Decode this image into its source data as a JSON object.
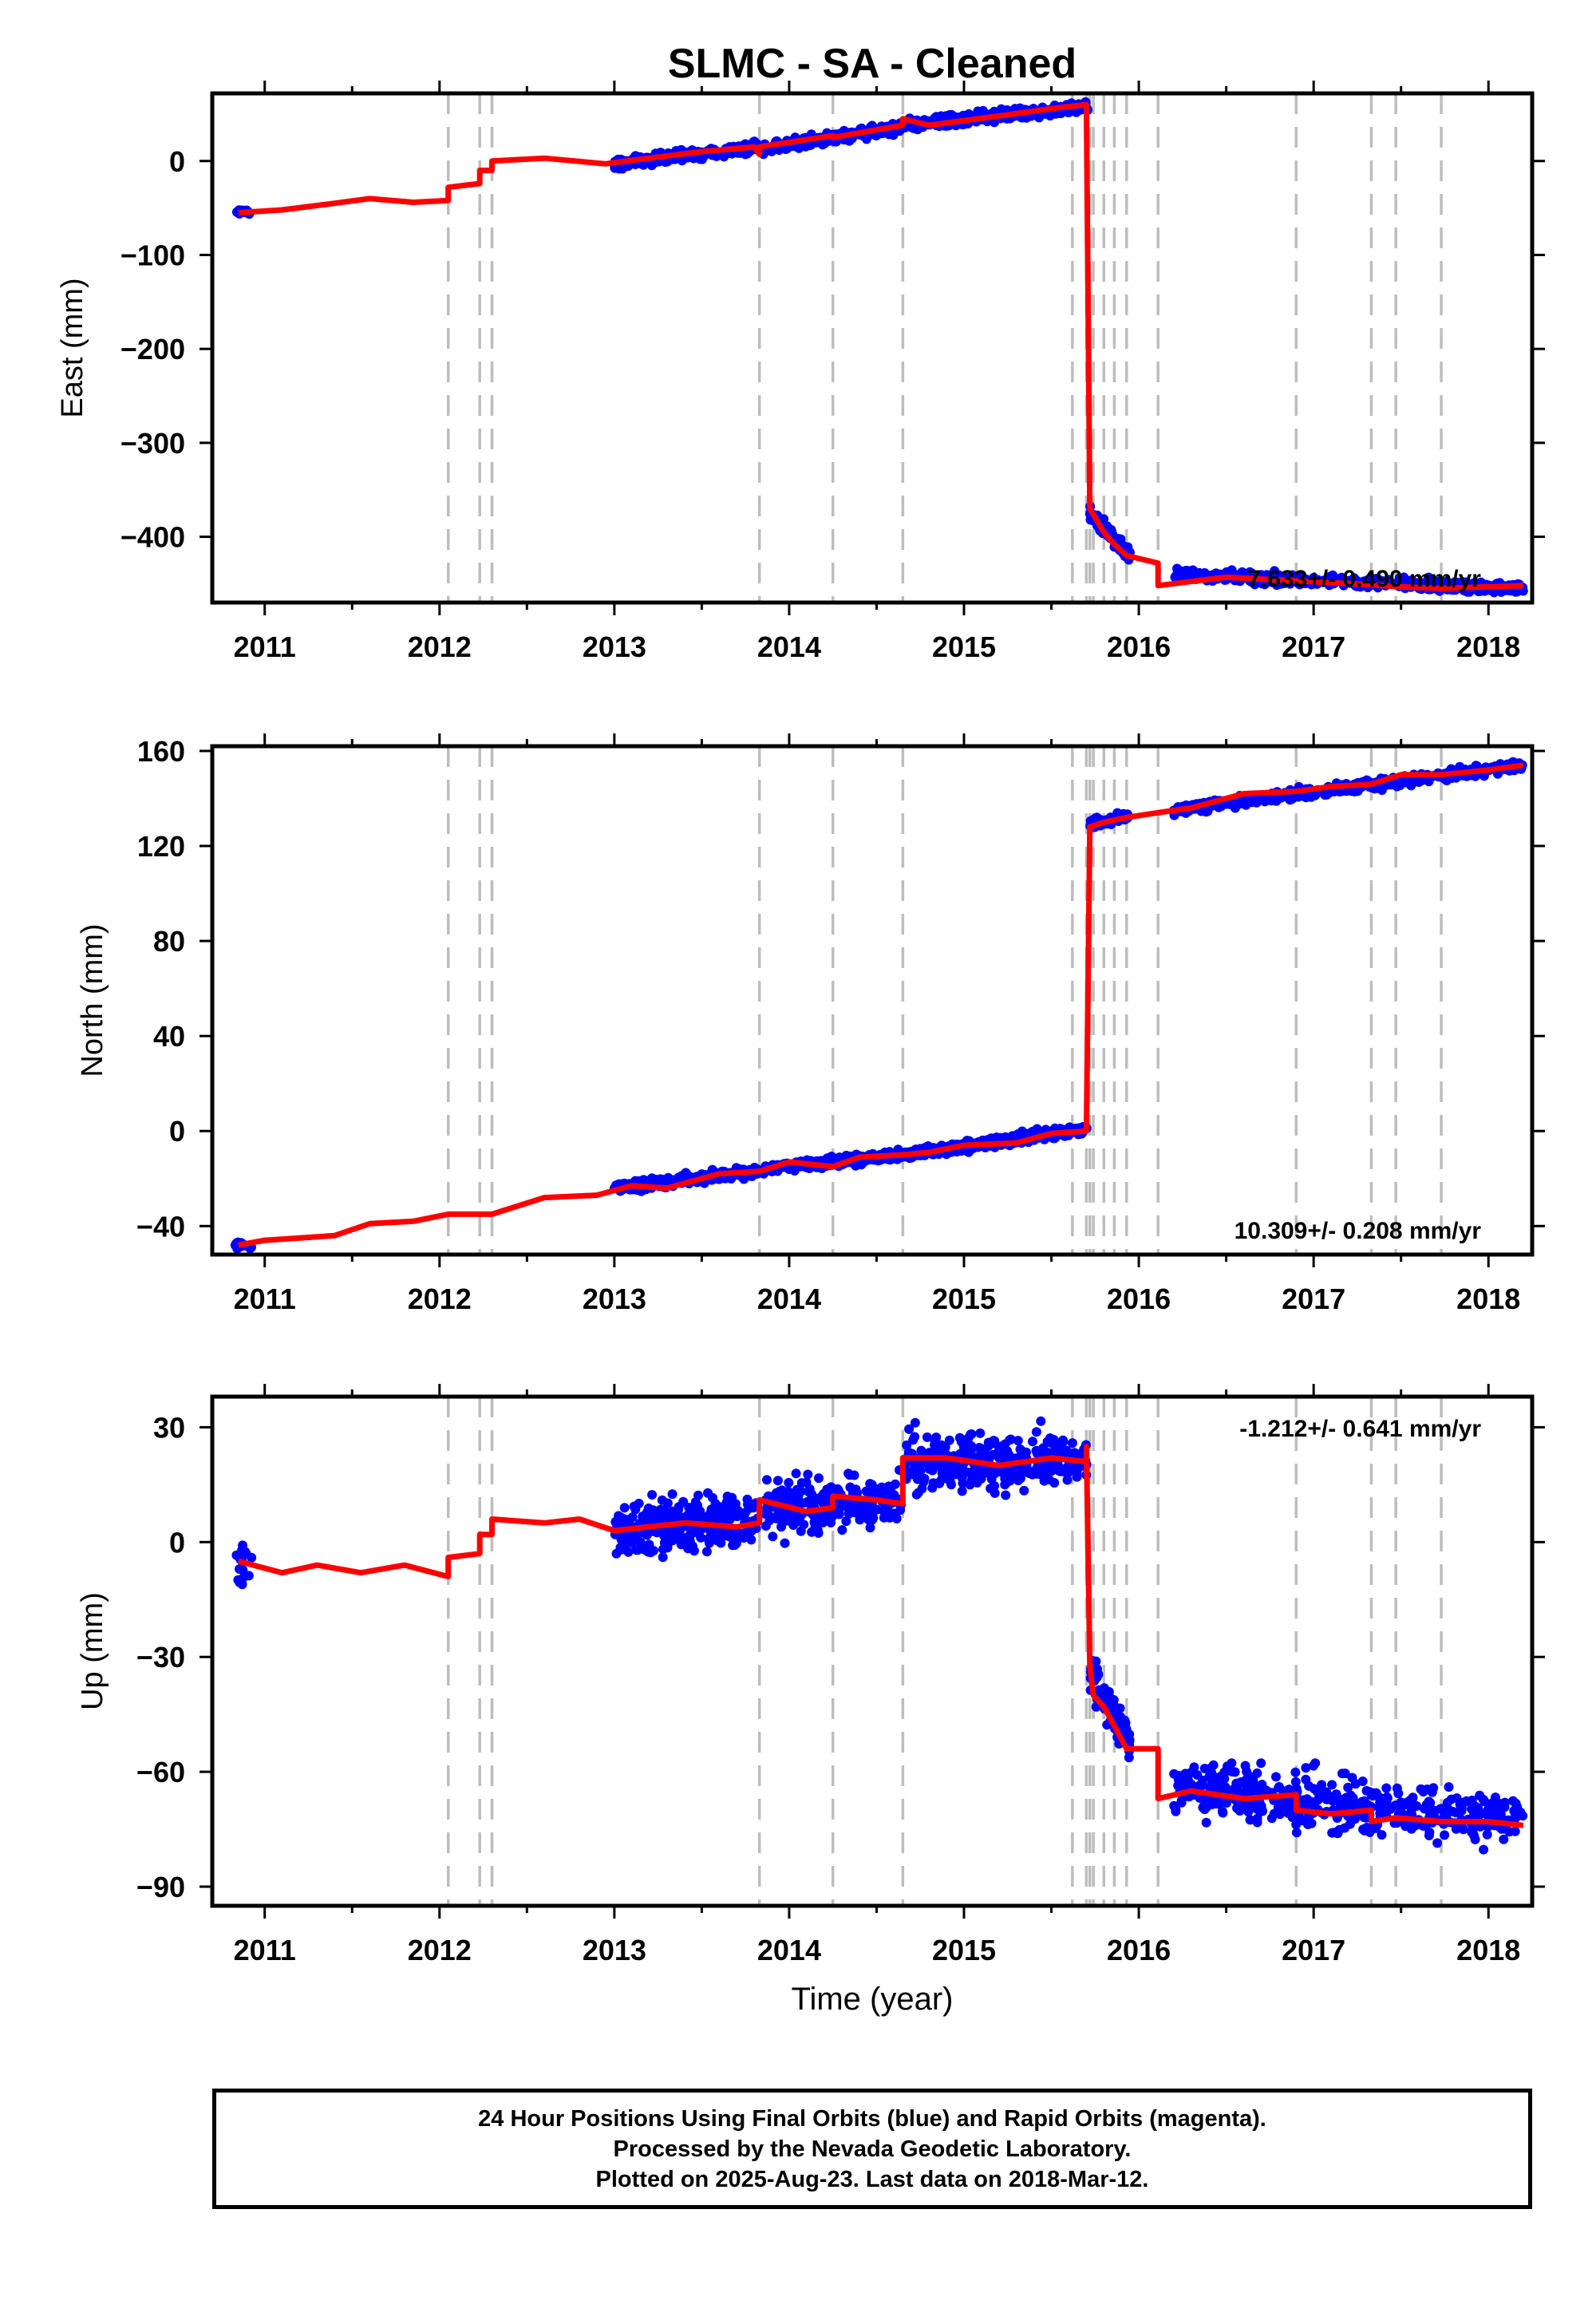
{
  "title": "SLMC  - SA - Cleaned",
  "xlabel": "Time (year)",
  "footer": {
    "line1": "24 Hour Positions Using Final Orbits (blue) and Rapid Orbits (magenta).",
    "line2": "Processed by the Nevada Geodetic Laboratory.",
    "line3": "Plotted on 2025-Aug-23. Last data on 2018-Mar-12."
  },
  "colors": {
    "data": "#0000ff",
    "model": "#ff0000",
    "steps": "#bdbdbd",
    "axis": "#000000"
  },
  "chart_data": [
    {
      "type": "scatter",
      "ylabel": "East (mm)",
      "rate_label": "7.633+/- 0.490 mm/yr",
      "rate_position": "bottom-right",
      "xlim": [
        2010.7,
        2018.25
      ],
      "ylim": [
        -470,
        72
      ],
      "xticks": [
        2011,
        2012,
        2013,
        2014,
        2015,
        2016,
        2017,
        2018
      ],
      "yticks": [
        0,
        -100,
        -200,
        -300,
        -400
      ],
      "ytick_labels": [
        "0",
        "−100",
        "−200",
        "−300",
        "−400"
      ],
      "step_lines": [
        2012.05,
        2012.23,
        2012.3,
        2013.83,
        2014.25,
        2014.65,
        2015.62,
        2015.7,
        2015.72,
        2015.74,
        2015.8,
        2015.86,
        2015.93,
        2016.11,
        2016.9,
        2017.33,
        2017.47,
        2017.73
      ],
      "model": [
        [
          2010.85,
          -55
        ],
        [
          2011.1,
          -52
        ],
        [
          2011.4,
          -45
        ],
        [
          2011.6,
          -40
        ],
        [
          2011.85,
          -44
        ],
        [
          2012.05,
          -42
        ],
        [
          2012.05,
          -28
        ],
        [
          2012.23,
          -24
        ],
        [
          2012.23,
          -10
        ],
        [
          2012.3,
          -10
        ],
        [
          2012.3,
          0
        ],
        [
          2012.6,
          3
        ],
        [
          2012.95,
          -3
        ],
        [
          2013.2,
          3
        ],
        [
          2013.5,
          10
        ],
        [
          2013.8,
          15
        ],
        [
          2013.83,
          7
        ],
        [
          2013.83,
          15
        ],
        [
          2014.25,
          27
        ],
        [
          2014.25,
          25
        ],
        [
          2014.65,
          38
        ],
        [
          2014.65,
          45
        ],
        [
          2014.8,
          38
        ],
        [
          2015.2,
          48
        ],
        [
          2015.55,
          57
        ],
        [
          2015.7,
          60
        ],
        [
          2015.72,
          -370
        ],
        [
          2015.8,
          -395
        ],
        [
          2015.86,
          -408
        ],
        [
          2015.93,
          -420
        ],
        [
          2016.11,
          -428
        ],
        [
          2016.11,
          -452
        ],
        [
          2016.5,
          -443
        ],
        [
          2016.9,
          -447
        ],
        [
          2017.33,
          -451
        ],
        [
          2017.47,
          -453
        ],
        [
          2017.73,
          -455
        ],
        [
          2018.2,
          -452
        ]
      ],
      "data_segments": [
        {
          "x0": 2010.83,
          "x1": 2010.93,
          "y0": -54,
          "y1": -54,
          "noise": 2,
          "n": 18
        },
        {
          "x0": 2013.0,
          "x1": 2013.82,
          "y0": -3,
          "y1": 15,
          "noise": 4,
          "n": 260
        },
        {
          "x0": 2013.85,
          "x1": 2014.64,
          "y0": 13,
          "y1": 36,
          "noise": 4,
          "n": 240
        },
        {
          "x0": 2014.66,
          "x1": 2015.71,
          "y0": 38,
          "y1": 58,
          "noise": 4,
          "n": 320
        },
        {
          "x0": 2015.72,
          "x1": 2015.95,
          "y0": -375,
          "y1": -420,
          "noise": 6,
          "n": 80
        },
        {
          "x0": 2016.2,
          "x1": 2018.2,
          "y0": -440,
          "y1": -455,
          "noise": 4,
          "n": 500
        }
      ]
    },
    {
      "type": "scatter",
      "ylabel": "North (mm)",
      "rate_label": "10.309+/- 0.208 mm/yr",
      "rate_position": "bottom-right",
      "xlim": [
        2010.7,
        2018.25
      ],
      "ylim": [
        -52,
        162
      ],
      "xticks": [
        2011,
        2012,
        2013,
        2014,
        2015,
        2016,
        2017,
        2018
      ],
      "yticks": [
        160,
        120,
        80,
        40,
        0,
        -40
      ],
      "ytick_labels": [
        "160",
        "120",
        "80",
        "40",
        "0",
        "−40"
      ],
      "step_lines": [
        2012.05,
        2012.23,
        2012.3,
        2013.83,
        2014.25,
        2014.65,
        2015.62,
        2015.7,
        2015.72,
        2015.74,
        2015.8,
        2015.86,
        2015.93,
        2016.11,
        2016.9,
        2017.33,
        2017.47,
        2017.73
      ],
      "model": [
        [
          2010.85,
          -48
        ],
        [
          2011.0,
          -46
        ],
        [
          2011.2,
          -45
        ],
        [
          2011.4,
          -44
        ],
        [
          2011.6,
          -39
        ],
        [
          2011.85,
          -38
        ],
        [
          2012.05,
          -35
        ],
        [
          2012.3,
          -35
        ],
        [
          2012.6,
          -28
        ],
        [
          2012.9,
          -27
        ],
        [
          2013.1,
          -23
        ],
        [
          2013.3,
          -24
        ],
        [
          2013.6,
          -18
        ],
        [
          2013.83,
          -17
        ],
        [
          2014.0,
          -13
        ],
        [
          2014.25,
          -15
        ],
        [
          2014.4,
          -11
        ],
        [
          2014.65,
          -10
        ],
        [
          2014.8,
          -9
        ],
        [
          2015.0,
          -6
        ],
        [
          2015.3,
          -5
        ],
        [
          2015.5,
          -1
        ],
        [
          2015.7,
          0
        ],
        [
          2015.72,
          128
        ],
        [
          2015.8,
          130
        ],
        [
          2015.93,
          132
        ],
        [
          2016.11,
          134
        ],
        [
          2016.3,
          136
        ],
        [
          2016.6,
          142
        ],
        [
          2016.9,
          143
        ],
        [
          2017.1,
          145
        ],
        [
          2017.33,
          146
        ],
        [
          2017.5,
          150
        ],
        [
          2017.73,
          150
        ],
        [
          2018.0,
          152
        ],
        [
          2018.2,
          154
        ]
      ],
      "data_segments": [
        {
          "x0": 2010.83,
          "x1": 2010.93,
          "y0": -48,
          "y1": -48,
          "noise": 1.2,
          "n": 18
        },
        {
          "x0": 2013.0,
          "x1": 2013.82,
          "y0": -24,
          "y1": -17,
          "noise": 1.5,
          "n": 260
        },
        {
          "x0": 2013.85,
          "x1": 2014.64,
          "y0": -16,
          "y1": -10,
          "noise": 1.5,
          "n": 240
        },
        {
          "x0": 2014.66,
          "x1": 2015.71,
          "y0": -10,
          "y1": 1,
          "noise": 1.5,
          "n": 320
        },
        {
          "x0": 2015.72,
          "x1": 2015.95,
          "y0": 129,
          "y1": 133,
          "noise": 1.5,
          "n": 80
        },
        {
          "x0": 2016.2,
          "x1": 2018.2,
          "y0": 135,
          "y1": 154,
          "noise": 1.5,
          "n": 500
        }
      ]
    },
    {
      "type": "scatter",
      "ylabel": "Up (mm)",
      "rate_label": "-1.212+/- 0.641 mm/yr",
      "rate_position": "top-right",
      "xlim": [
        2010.7,
        2018.25
      ],
      "ylim": [
        -95,
        38
      ],
      "xticks": [
        2011,
        2012,
        2013,
        2014,
        2015,
        2016,
        2017,
        2018
      ],
      "yticks": [
        30,
        0,
        -30,
        -60,
        -90
      ],
      "ytick_labels": [
        "30",
        "0",
        "−30",
        "−60",
        "−90"
      ],
      "step_lines": [
        2012.05,
        2012.23,
        2012.3,
        2013.83,
        2014.25,
        2014.65,
        2015.62,
        2015.7,
        2015.72,
        2015.74,
        2015.8,
        2015.86,
        2015.93,
        2016.11,
        2016.9,
        2017.33,
        2017.47,
        2017.73
      ],
      "model": [
        [
          2010.85,
          -5
        ],
        [
          2011.1,
          -8
        ],
        [
          2011.3,
          -6
        ],
        [
          2011.55,
          -8
        ],
        [
          2011.8,
          -6
        ],
        [
          2012.05,
          -9
        ],
        [
          2012.05,
          -4
        ],
        [
          2012.23,
          -3
        ],
        [
          2012.23,
          2
        ],
        [
          2012.3,
          2
        ],
        [
          2012.3,
          6
        ],
        [
          2012.6,
          5
        ],
        [
          2012.8,
          6
        ],
        [
          2013.0,
          3
        ],
        [
          2013.4,
          5
        ],
        [
          2013.7,
          4
        ],
        [
          2013.83,
          5
        ],
        [
          2013.83,
          11
        ],
        [
          2014.1,
          8
        ],
        [
          2014.25,
          9
        ],
        [
          2014.25,
          12
        ],
        [
          2014.5,
          11
        ],
        [
          2014.65,
          10
        ],
        [
          2014.65,
          22
        ],
        [
          2014.9,
          22
        ],
        [
          2015.2,
          20
        ],
        [
          2015.5,
          22
        ],
        [
          2015.7,
          21
        ],
        [
          2015.7,
          25
        ],
        [
          2015.72,
          -32
        ],
        [
          2015.74,
          -40
        ],
        [
          2015.8,
          -43
        ],
        [
          2015.86,
          -48
        ],
        [
          2015.93,
          -54
        ],
        [
          2016.11,
          -54
        ],
        [
          2016.11,
          -67
        ],
        [
          2016.3,
          -65
        ],
        [
          2016.6,
          -67
        ],
        [
          2016.9,
          -66
        ],
        [
          2016.9,
          -70
        ],
        [
          2017.1,
          -71
        ],
        [
          2017.33,
          -70
        ],
        [
          2017.33,
          -73
        ],
        [
          2017.47,
          -72
        ],
        [
          2017.73,
          -73
        ],
        [
          2018.0,
          -73
        ],
        [
          2018.2,
          -74
        ]
      ],
      "data_segments": [
        {
          "x0": 2010.83,
          "x1": 2010.93,
          "y0": -5,
          "y1": -5,
          "noise": 4,
          "n": 18
        },
        {
          "x0": 2013.0,
          "x1": 2013.82,
          "y0": 3,
          "y1": 6,
          "noise": 5,
          "n": 260
        },
        {
          "x0": 2013.85,
          "x1": 2014.64,
          "y0": 9,
          "y1": 11,
          "noise": 5,
          "n": 240
        },
        {
          "x0": 2014.66,
          "x1": 2015.71,
          "y0": 21,
          "y1": 21,
          "noise": 5,
          "n": 320
        },
        {
          "x0": 2015.72,
          "x1": 2015.95,
          "y0": -35,
          "y1": -52,
          "noise": 4,
          "n": 80
        },
        {
          "x0": 2016.2,
          "x1": 2018.2,
          "y0": -64,
          "y1": -73,
          "noise": 5,
          "n": 500
        }
      ]
    }
  ]
}
